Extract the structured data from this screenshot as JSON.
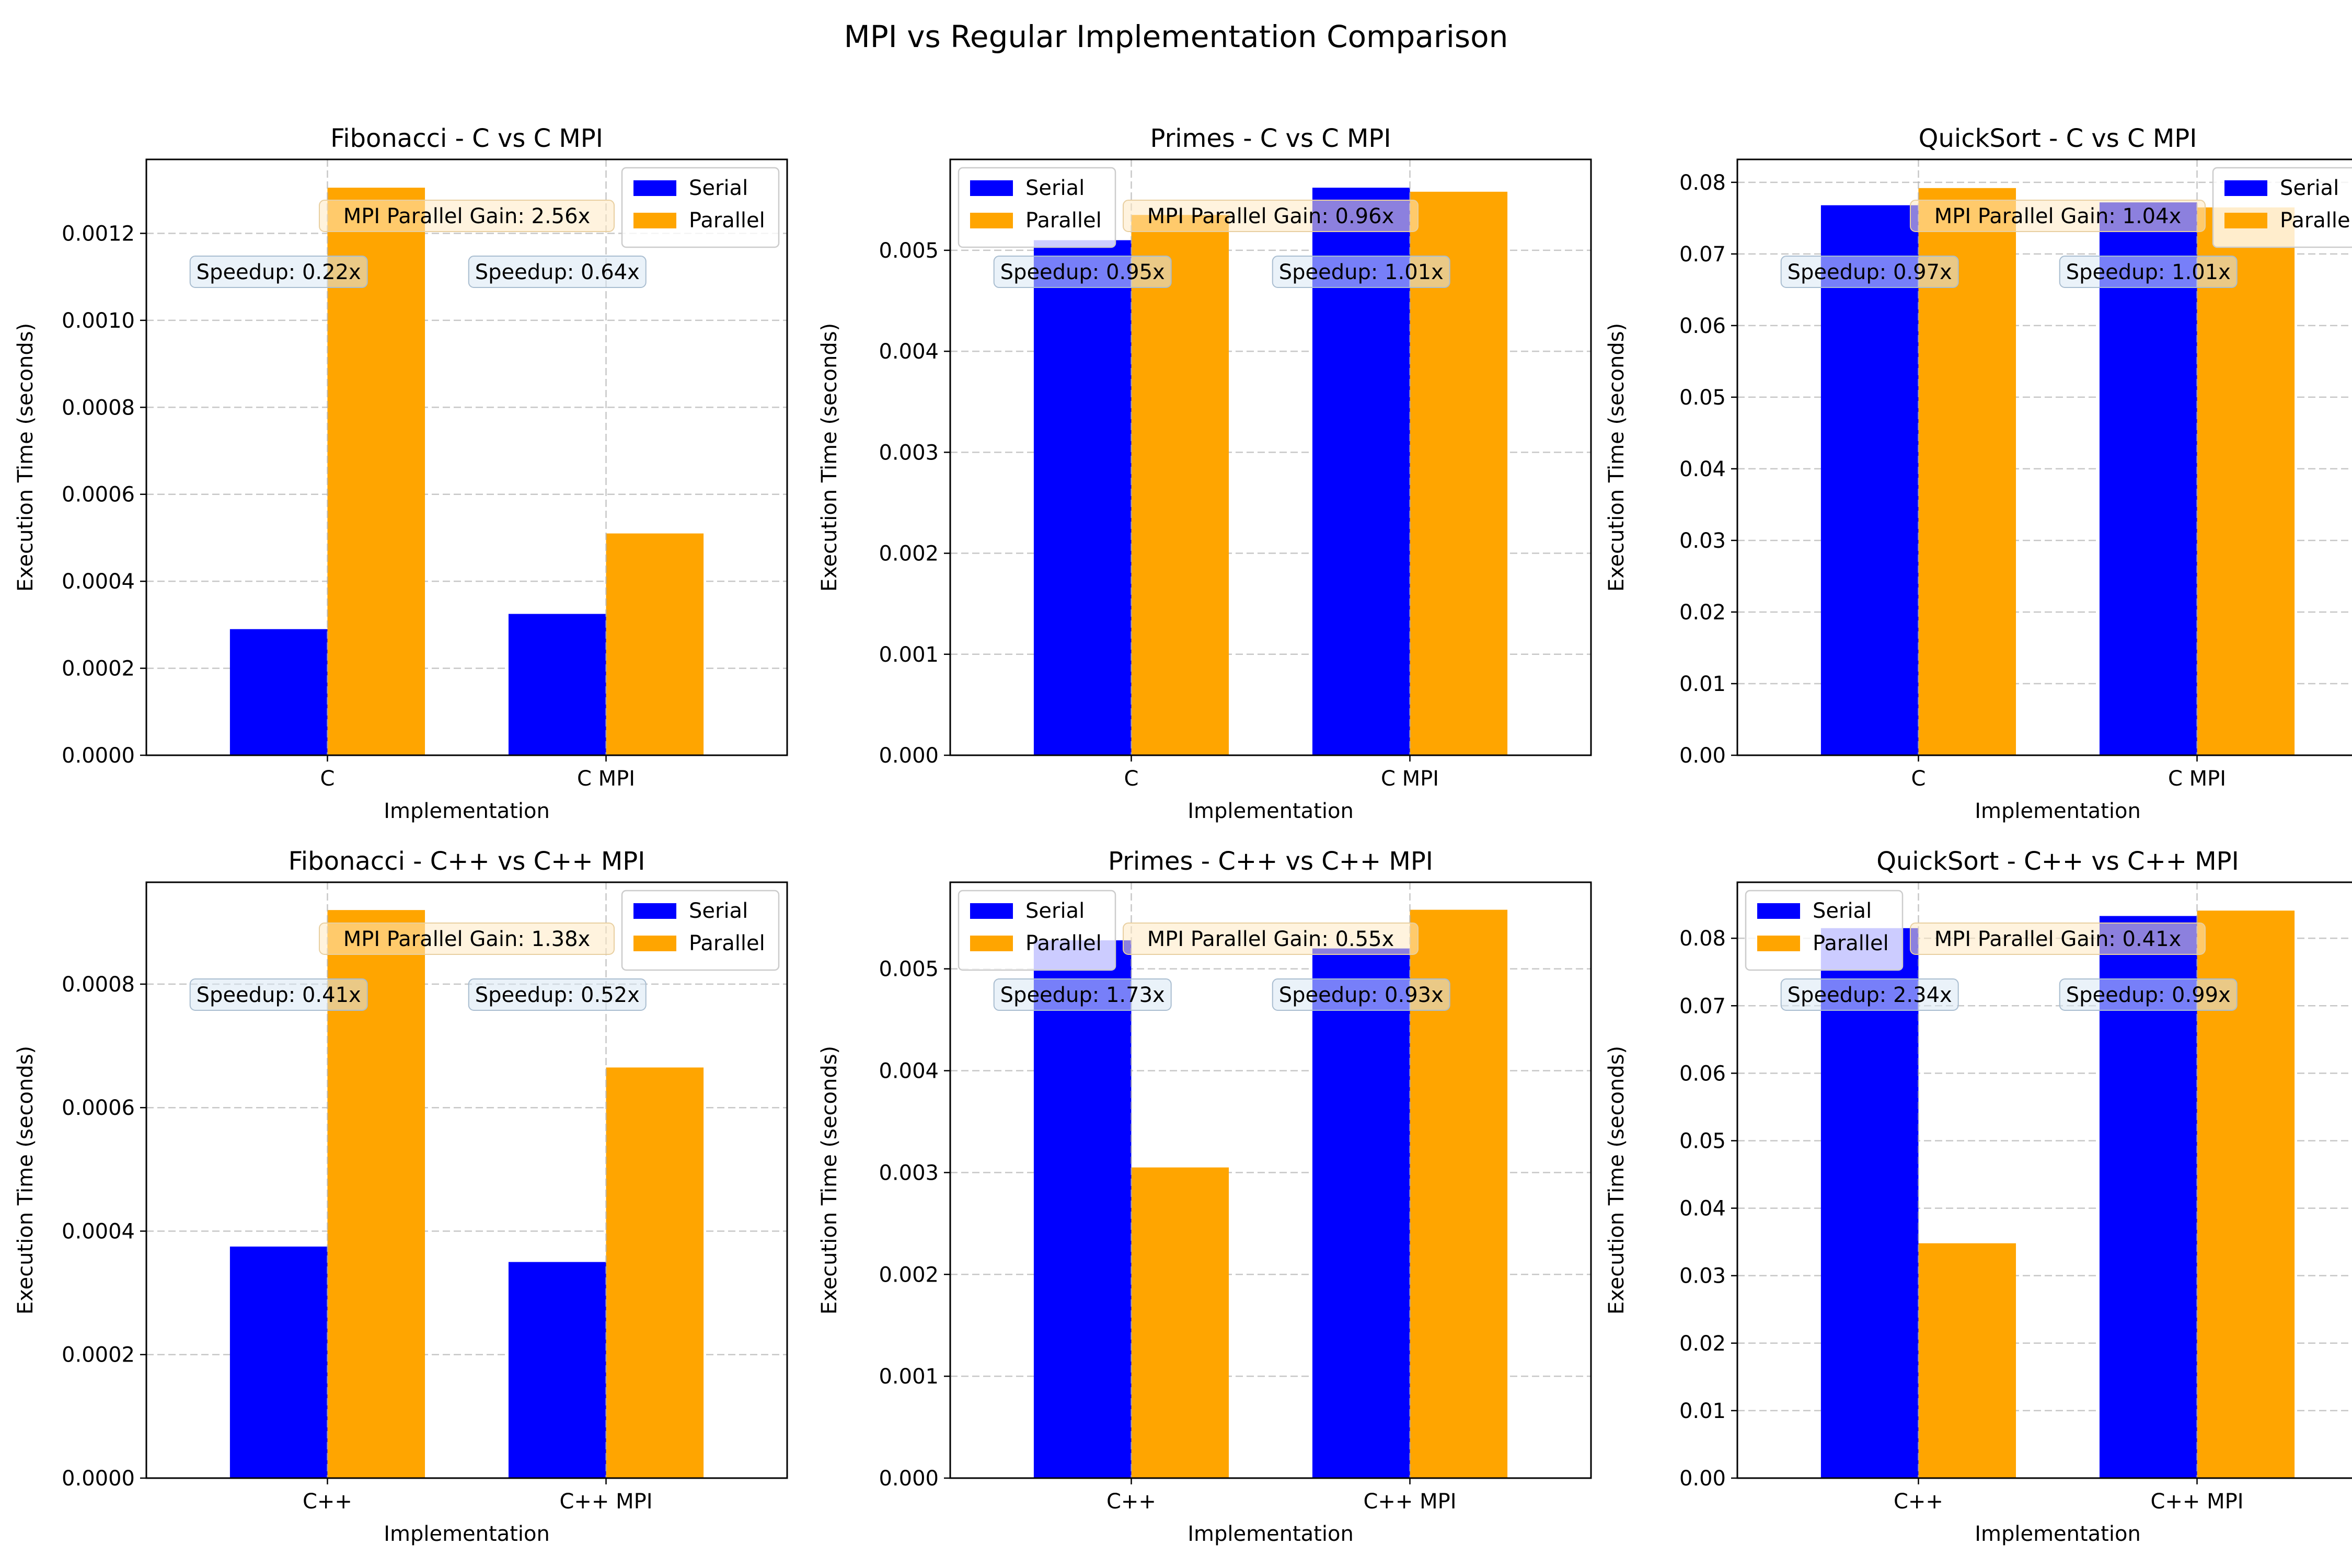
{
  "figure": {
    "title": "MPI vs Regular Implementation Comparison"
  },
  "colors": {
    "serial": "#0000ff",
    "parallel": "#ffa500",
    "grid": "#b0b0b0",
    "speedup_box": "#d9e8f4",
    "gain_box": "#ffe9c2",
    "background": "#ffffff"
  },
  "chart_data": [
    {
      "type": "bar",
      "title": "Fibonacci - C vs C MPI",
      "xlabel": "Implementation",
      "ylabel": "Execution Time (seconds)",
      "categories": [
        "C",
        "C MPI"
      ],
      "series": [
        {
          "name": "Serial",
          "values": [
            0.00029,
            0.000325
          ]
        },
        {
          "name": "Parallel",
          "values": [
            0.001305,
            0.00051
          ]
        }
      ],
      "ylim": [
        0,
        0.00137
      ],
      "yticks": [
        0,
        0.0002,
        0.0004,
        0.0006,
        0.0008,
        0.001,
        0.0012
      ],
      "ytick_labels": [
        "0.0000",
        "0.0002",
        "0.0004",
        "0.0006",
        "0.0008",
        "0.0010",
        "0.0012"
      ],
      "speedup_labels": [
        "Speedup: 0.22x",
        "Speedup: 0.64x"
      ],
      "gain_label": "MPI Parallel Gain: 2.56x",
      "legend": "upper right",
      "grid": true
    },
    {
      "type": "bar",
      "title": "Primes - C vs C MPI",
      "xlabel": "Implementation",
      "ylabel": "Execution Time (seconds)",
      "categories": [
        "C",
        "C MPI"
      ],
      "series": [
        {
          "name": "Serial",
          "values": [
            0.0051,
            0.00562
          ]
        },
        {
          "name": "Parallel",
          "values": [
            0.00535,
            0.00558
          ]
        }
      ],
      "ylim": [
        0,
        0.0059
      ],
      "yticks": [
        0,
        0.001,
        0.002,
        0.003,
        0.004,
        0.005
      ],
      "ytick_labels": [
        "0.000",
        "0.001",
        "0.002",
        "0.003",
        "0.004",
        "0.005"
      ],
      "speedup_labels": [
        "Speedup: 0.95x",
        "Speedup: 1.01x"
      ],
      "gain_label": "MPI Parallel Gain: 0.96x",
      "legend": "upper left",
      "grid": true
    },
    {
      "type": "bar",
      "title": "QuickSort - C vs C MPI",
      "xlabel": "Implementation",
      "ylabel": "Execution Time (seconds)",
      "categories": [
        "C",
        "C MPI"
      ],
      "series": [
        {
          "name": "Serial",
          "values": [
            0.0768,
            0.0772
          ]
        },
        {
          "name": "Parallel",
          "values": [
            0.0792,
            0.0765
          ]
        }
      ],
      "ylim": [
        0,
        0.0832
      ],
      "yticks": [
        0,
        0.01,
        0.02,
        0.03,
        0.04,
        0.05,
        0.06,
        0.07,
        0.08
      ],
      "ytick_labels": [
        "0.00",
        "0.01",
        "0.02",
        "0.03",
        "0.04",
        "0.05",
        "0.06",
        "0.07",
        "0.08"
      ],
      "speedup_labels": [
        "Speedup: 0.97x",
        "Speedup: 1.01x"
      ],
      "gain_label": "MPI Parallel Gain: 1.04x",
      "legend": "upper right",
      "grid": true
    },
    {
      "type": "bar",
      "title": "Fibonacci - C++ vs C++ MPI",
      "xlabel": "Implementation",
      "ylabel": "Execution Time (seconds)",
      "categories": [
        "C++",
        "C++ MPI"
      ],
      "series": [
        {
          "name": "Serial",
          "values": [
            0.000375,
            0.00035
          ]
        },
        {
          "name": "Parallel",
          "values": [
            0.00092,
            0.000665
          ]
        }
      ],
      "ylim": [
        0,
        0.000965
      ],
      "yticks": [
        0,
        0.0002,
        0.0004,
        0.0006,
        0.0008
      ],
      "ytick_labels": [
        "0.0000",
        "0.0002",
        "0.0004",
        "0.0006",
        "0.0008"
      ],
      "speedup_labels": [
        "Speedup: 0.41x",
        "Speedup: 0.52x"
      ],
      "gain_label": "MPI Parallel Gain: 1.38x",
      "legend": "upper right",
      "grid": true
    },
    {
      "type": "bar",
      "title": "Primes - C++ vs C++ MPI",
      "xlabel": "Implementation",
      "ylabel": "Execution Time (seconds)",
      "categories": [
        "C++",
        "C++ MPI"
      ],
      "series": [
        {
          "name": "Serial",
          "values": [
            0.00528,
            0.0052
          ]
        },
        {
          "name": "Parallel",
          "values": [
            0.00305,
            0.00558
          ]
        }
      ],
      "ylim": [
        0,
        0.00585
      ],
      "yticks": [
        0,
        0.001,
        0.002,
        0.003,
        0.004,
        0.005
      ],
      "ytick_labels": [
        "0.000",
        "0.001",
        "0.002",
        "0.003",
        "0.004",
        "0.005"
      ],
      "speedup_labels": [
        "Speedup: 1.73x",
        "Speedup: 0.93x"
      ],
      "gain_label": "MPI Parallel Gain: 0.55x",
      "legend": "upper left",
      "grid": true
    },
    {
      "type": "bar",
      "title": "QuickSort - C++ vs C++ MPI",
      "xlabel": "Implementation",
      "ylabel": "Execution Time (seconds)",
      "categories": [
        "C++",
        "C++ MPI"
      ],
      "series": [
        {
          "name": "Serial",
          "values": [
            0.0815,
            0.0833
          ]
        },
        {
          "name": "Parallel",
          "values": [
            0.0348,
            0.0841
          ]
        }
      ],
      "ylim": [
        0,
        0.0883
      ],
      "yticks": [
        0,
        0.01,
        0.02,
        0.03,
        0.04,
        0.05,
        0.06,
        0.07,
        0.08
      ],
      "ytick_labels": [
        "0.00",
        "0.01",
        "0.02",
        "0.03",
        "0.04",
        "0.05",
        "0.06",
        "0.07",
        "0.08"
      ],
      "speedup_labels": [
        "Speedup: 2.34x",
        "Speedup: 0.99x"
      ],
      "gain_label": "MPI Parallel Gain: 0.41x",
      "legend": "upper left",
      "grid": true
    }
  ]
}
